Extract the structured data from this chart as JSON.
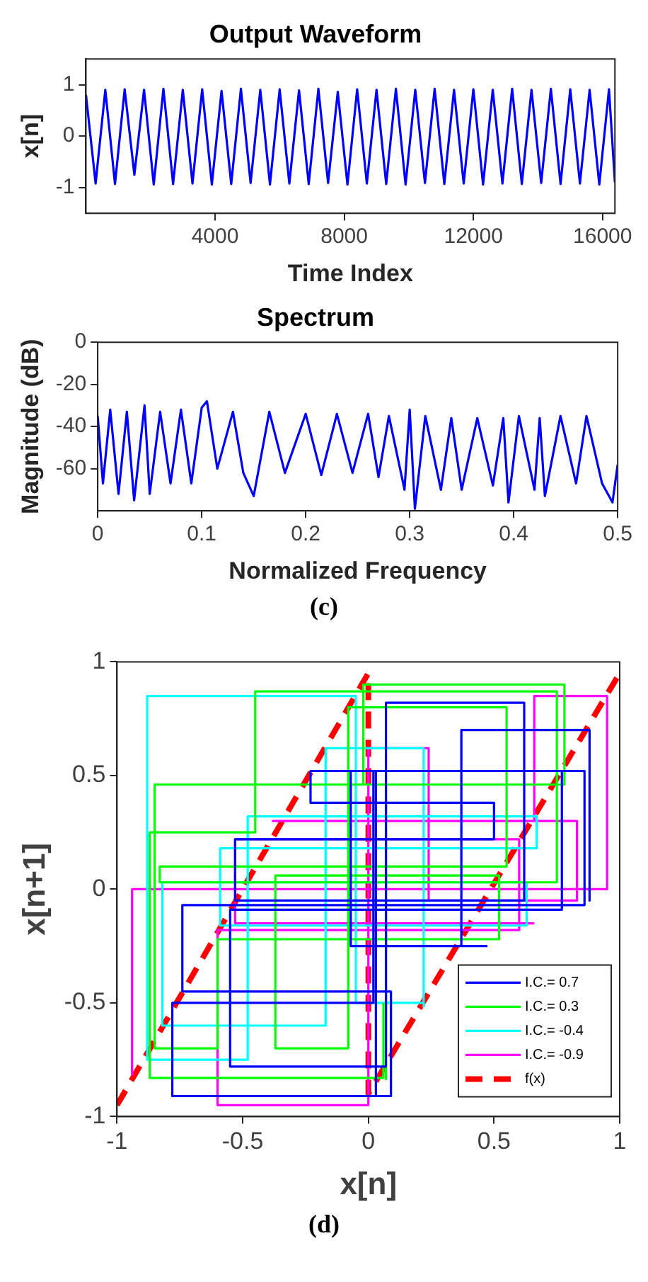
{
  "chart_data": [
    {
      "type": "line",
      "title": "Output Waveform",
      "xlabel": "Time Index",
      "ylabel": "x[n]",
      "xlim": [
        0,
        16384
      ],
      "xticks": [
        4000,
        8000,
        12000,
        16000
      ],
      "ylim": [
        -1.5,
        1.5
      ],
      "yticks": [
        -1,
        0,
        1
      ],
      "series": [
        {
          "color": "#0000ff",
          "x": [
            1,
            300,
            600,
            900,
            1200,
            1500,
            1800,
            2100,
            2400,
            2700,
            3000,
            3300,
            3600,
            3900,
            4200,
            4500,
            4800,
            5100,
            5400,
            5700,
            6000,
            6300,
            6600,
            6900,
            7200,
            7500,
            7800,
            8100,
            8400,
            8700,
            9000,
            9300,
            9600,
            9900,
            10200,
            10500,
            10800,
            11100,
            11400,
            11700,
            12000,
            12300,
            12600,
            12900,
            13200,
            13500,
            13800,
            14100,
            14400,
            14700,
            15000,
            15300,
            15600,
            15900,
            16200,
            16384
          ],
          "values": [
            0.8,
            -0.92,
            0.9,
            -0.93,
            0.91,
            -0.75,
            0.9,
            -0.94,
            0.92,
            -0.93,
            0.9,
            -0.92,
            0.91,
            -0.94,
            0.88,
            -0.93,
            0.92,
            -0.91,
            0.9,
            -0.94,
            0.91,
            -0.92,
            0.89,
            -0.93,
            0.92,
            -0.91,
            0.86,
            -0.94,
            0.91,
            -0.92,
            0.9,
            -0.93,
            0.92,
            -0.94,
            0.9,
            -0.91,
            0.92,
            -0.93,
            0.9,
            -0.92,
            0.91,
            -0.94,
            0.9,
            -0.92,
            0.92,
            -0.93,
            0.9,
            -0.91,
            0.92,
            -0.93,
            0.91,
            -0.92,
            0.9,
            -0.94,
            0.91,
            -0.9
          ]
        }
      ]
    },
    {
      "type": "line",
      "title": "Spectrum",
      "xlabel": "Normalized Frequency",
      "ylabel": "Magnitude (dB)",
      "xlim": [
        0,
        0.5
      ],
      "xticks": [
        0,
        0.1,
        0.2,
        0.3,
        0.4,
        0.5
      ],
      "ylim": [
        -80,
        0
      ],
      "yticks": [
        -60,
        -40,
        -20,
        0
      ],
      "annotations": [
        "(c)"
      ],
      "series": [
        {
          "color": "#0000ff",
          "x": [
            0,
            0.005,
            0.012,
            0.02,
            0.028,
            0.035,
            0.045,
            0.05,
            0.06,
            0.07,
            0.08,
            0.09,
            0.1,
            0.105,
            0.115,
            0.13,
            0.14,
            0.15,
            0.165,
            0.18,
            0.2,
            0.215,
            0.23,
            0.245,
            0.26,
            0.27,
            0.28,
            0.295,
            0.3,
            0.305,
            0.315,
            0.33,
            0.34,
            0.35,
            0.365,
            0.38,
            0.39,
            0.395,
            0.405,
            0.42,
            0.425,
            0.43,
            0.445,
            0.46,
            0.47,
            0.485,
            0.495,
            0.5
          ],
          "values": [
            -35,
            -67,
            -32,
            -72,
            -33,
            -75,
            -30,
            -72,
            -33,
            -67,
            -32,
            -67,
            -31,
            -28,
            -60,
            -33,
            -62,
            -73,
            -33,
            -62,
            -34,
            -63,
            -34,
            -62,
            -34,
            -64,
            -35,
            -70,
            -32,
            -79,
            -35,
            -70,
            -36,
            -70,
            -36,
            -68,
            -36,
            -76,
            -35,
            -70,
            -36,
            -73,
            -35,
            -67,
            -35,
            -67,
            -76,
            -58
          ]
        }
      ]
    },
    {
      "type": "line",
      "xlabel": "x[n]",
      "ylabel": "x[n+1]",
      "xlim": [
        -1,
        1
      ],
      "xticks": [
        -1,
        -0.5,
        0,
        0.5,
        1
      ],
      "ylim": [
        -1,
        1
      ],
      "yticks": [
        -1,
        -0.5,
        0,
        0.5,
        1
      ],
      "legend": "bottom right",
      "annotations": [
        "(d)"
      ],
      "series": [
        {
          "name": "I.C.= 0.7",
          "color": "#0000ff",
          "x": [
            0.03,
            0.03,
            0.77,
            0.77,
            -0.55,
            -0.55,
            0.07,
            0.07,
            0.62,
            0.62,
            -0.53,
            -0.53,
            0.5,
            0.5,
            -0.23,
            -0.23,
            0.86,
            0.86,
            -0.74,
            -0.74,
            0.09,
            0.09,
            -0.78,
            -0.78,
            0.02,
            0.02,
            -0.07,
            -0.07,
            0.47,
            0.37,
            0.37,
            0.88,
            0.88
          ],
          "values": [
            -0.91,
            0.52,
            0.52,
            -0.09,
            -0.09,
            -0.78,
            -0.78,
            0.82,
            0.82,
            -0.05,
            -0.05,
            0.22,
            0.22,
            0.38,
            0.38,
            0.52,
            0.52,
            -0.07,
            -0.07,
            -0.45,
            -0.45,
            -0.91,
            -0.91,
            -0.5,
            -0.5,
            0.52,
            0.52,
            -0.25,
            -0.25,
            -0.25,
            0.7,
            0.7,
            -0.05
          ]
        },
        {
          "name": "I.C.= 0.3",
          "color": "#00ff00",
          "x": [
            0.07,
            0.07,
            -0.02,
            -0.02,
            0.78,
            0.78,
            -0.85,
            -0.85,
            -0.6,
            -0.6,
            0.52,
            0.52,
            -0.37,
            -0.37,
            -0.08,
            -0.08,
            0.55,
            0.55,
            -0.83,
            -0.83,
            0.75,
            0.75,
            -0.45,
            -0.45,
            -0.87,
            -0.87,
            0.06,
            0.06
          ],
          "values": [
            -0.84,
            0.46,
            0.46,
            0.9,
            0.9,
            0.46,
            0.46,
            -0.7,
            -0.7,
            -0.22,
            -0.22,
            0.06,
            0.06,
            -0.7,
            -0.7,
            0.8,
            0.8,
            0.1,
            0.1,
            0.03,
            0.03,
            0.87,
            0.87,
            0.25,
            0.25,
            -0.83,
            -0.83,
            -0.5
          ]
        },
        {
          "name": "I.C.= -0.4",
          "color": "#00ffff",
          "x": [
            0.22,
            0.22,
            -0.17,
            -0.17,
            -0.82,
            -0.82,
            0.63,
            0.63,
            -0.59,
            -0.59,
            0.67,
            0.67,
            -0.48,
            -0.48,
            -0.88,
            -0.88,
            -0.05,
            -0.05,
            0.22
          ],
          "values": [
            -0.52,
            0.62,
            0.62,
            -0.6,
            -0.6,
            0.03,
            0.03,
            -0.16,
            -0.16,
            0.18,
            0.18,
            0.32,
            0.32,
            -0.75,
            -0.75,
            0.85,
            0.85,
            -0.5,
            -0.5
          ]
        },
        {
          "name": "I.C.= -0.9",
          "color": "#ff00ff",
          "x": [
            -0.94,
            -0.94,
            0.95,
            0.95,
            0.66,
            0.66,
            -0.38,
            -0.38,
            0.83,
            0.83,
            0.24,
            0.24,
            0.0,
            0.0,
            -0.6,
            -0.6,
            0.6,
            0.6,
            -0.53,
            -0.53,
            0.66
          ],
          "values": [
            -0.82,
            0.0,
            0.0,
            0.85,
            0.85,
            0.3,
            0.3,
            0.3,
            0.3,
            -0.05,
            -0.05,
            0.62,
            0.62,
            -0.95,
            -0.95,
            -0.18,
            -0.18,
            0.22,
            0.22,
            -0.15,
            -0.15
          ]
        },
        {
          "name": "f(x)",
          "color": "#ff0000",
          "line_style": "dashed",
          "x": [
            -1,
            0,
            0,
            1
          ],
          "values": [
            -0.95,
            0.95,
            -0.9,
            0.95
          ]
        }
      ]
    }
  ]
}
